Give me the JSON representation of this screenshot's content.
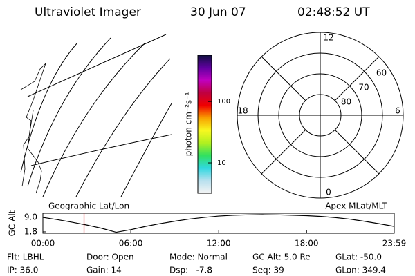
{
  "header": {
    "title": "Ultraviolet Imager",
    "date": "30 Jun 07",
    "time": "02:48:52 UT"
  },
  "chart_data": [
    {
      "type": "colorbar",
      "label": "photon cm⁻²s⁻¹",
      "log": true,
      "ylim": [
        3.2,
        570
      ],
      "yticks": [
        10,
        100
      ],
      "colors": [
        "#f4f4f4",
        "#b8e0ee",
        "#30d8e0",
        "#30e060",
        "#b0f020",
        "#f8f820",
        "#f8a000",
        "#f00000",
        "#c00040",
        "#c000c0",
        "#6000a0",
        "#101040"
      ]
    },
    {
      "type": "polar",
      "rlim": [
        90,
        50
      ],
      "rticks": [
        80,
        70,
        60
      ],
      "mlt_ticks": [
        12,
        18,
        0,
        6
      ]
    },
    {
      "type": "line",
      "title_left": "Geographic Lat/Lon",
      "title_right": "Apex MLat/MLT",
      "ylabel": "GC Alt",
      "x": [
        0,
        1,
        2,
        3,
        4,
        5,
        6,
        7,
        8,
        9,
        10,
        11,
        12,
        13,
        14,
        15,
        16,
        17,
        18,
        19,
        20,
        21,
        22,
        23,
        23.983
      ],
      "series": [
        {
          "color": "#000000",
          "values": [
            9.0,
            7.9,
            6.6,
            5.2,
            3.6,
            1.6,
            2.9,
            4.5,
            5.9,
            7.1,
            8.2,
            9.0,
            9.7,
            10.1,
            10.3,
            10.4,
            10.3,
            10.1,
            9.9,
            9.5,
            8.9,
            8.1,
            7.0,
            5.8,
            4.5
          ]
        }
      ],
      "xlim": [
        0,
        23.983
      ],
      "ylim": [
        1.1,
        11.1
      ],
      "yticks": [
        {
          "value": 9,
          "label": "9.0"
        },
        {
          "value": 1.8,
          "label": "1.8"
        }
      ],
      "xticks": [
        {
          "value": 0,
          "label": "00:00"
        },
        {
          "value": 6,
          "label": "06:00"
        },
        {
          "value": 12,
          "label": "12:00"
        },
        {
          "value": 18,
          "label": "18:00"
        },
        {
          "value": 23.983,
          "label": "23:59"
        }
      ],
      "cursor": 2.81,
      "cursor_color": "#e00000"
    }
  ],
  "footer": {
    "rows": [
      [
        "Flt: LBHL",
        "Door: Open",
        "Mode: Normal",
        "GC Alt: 5.0 Re",
        "GLat: -50.0"
      ],
      [
        "IP: 36.0",
        "Gain: 14",
        "Dsp:   -7.8",
        "Seq: 39",
        "GLon: 349.4"
      ]
    ]
  }
}
